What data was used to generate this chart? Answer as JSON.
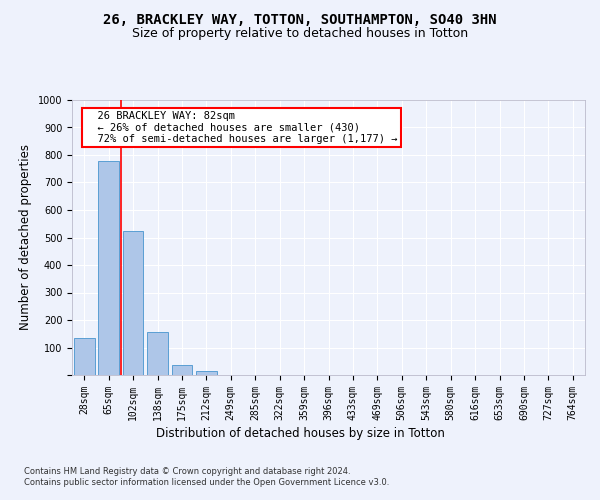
{
  "title_line1": "26, BRACKLEY WAY, TOTTON, SOUTHAMPTON, SO40 3HN",
  "title_line2": "Size of property relative to detached houses in Totton",
  "xlabel": "Distribution of detached houses by size in Totton",
  "ylabel": "Number of detached properties",
  "footnote": "Contains HM Land Registry data © Crown copyright and database right 2024.\nContains public sector information licensed under the Open Government Licence v3.0.",
  "bar_labels": [
    "28sqm",
    "65sqm",
    "102sqm",
    "138sqm",
    "175sqm",
    "212sqm",
    "249sqm",
    "285sqm",
    "322sqm",
    "359sqm",
    "396sqm",
    "433sqm",
    "469sqm",
    "506sqm",
    "543sqm",
    "580sqm",
    "616sqm",
    "653sqm",
    "690sqm",
    "727sqm",
    "764sqm"
  ],
  "bar_values": [
    133,
    778,
    524,
    158,
    37,
    13,
    0,
    0,
    0,
    0,
    0,
    0,
    0,
    0,
    0,
    0,
    0,
    0,
    0,
    0,
    0
  ],
  "bar_color": "#aec6e8",
  "bar_edge_color": "#5a9fd4",
  "vline_x": 1.5,
  "vline_color": "red",
  "annotation_text": "  26 BRACKLEY WAY: 82sqm\n  ← 26% of detached houses are smaller (430)\n  72% of semi-detached houses are larger (1,177) →",
  "annotation_box_color": "white",
  "annotation_box_edge_color": "red",
  "ylim": [
    0,
    1000
  ],
  "yticks": [
    0,
    100,
    200,
    300,
    400,
    500,
    600,
    700,
    800,
    900,
    1000
  ],
  "background_color": "#eef2fc",
  "plot_background_color": "#eef2fc",
  "grid_color": "white",
  "title_fontsize": 10,
  "subtitle_fontsize": 9,
  "axis_label_fontsize": 8.5,
  "tick_fontsize": 7,
  "annotation_fontsize": 7.5,
  "footnote_fontsize": 6
}
